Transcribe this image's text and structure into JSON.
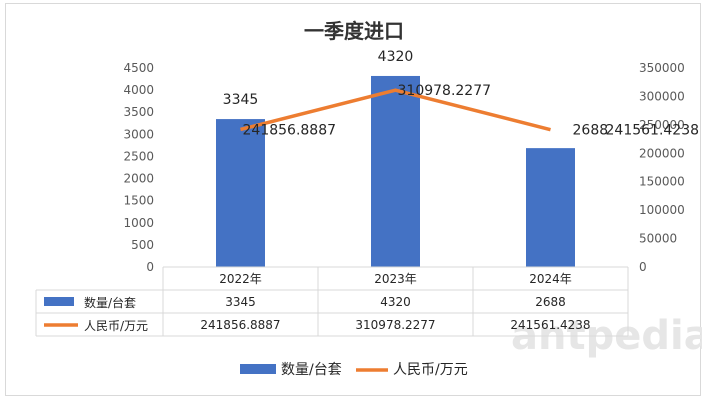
{
  "chart_data": {
    "type": "bar",
    "title": "一季度进口",
    "categories": [
      "2022年",
      "2023年",
      "2024年"
    ],
    "series": [
      {
        "name": "数量/台套",
        "type": "bar",
        "axis": "left",
        "color": "#4472c4",
        "values": [
          3345,
          4320,
          2688
        ],
        "labels": [
          "3345",
          "4320",
          "2688"
        ]
      },
      {
        "name": "人民币/万元",
        "type": "line",
        "axis": "right",
        "color": "#ed7d31",
        "values": [
          241856.8887,
          310978.2277,
          241561.4238
        ],
        "labels": [
          "241856.8887",
          "310978.2277",
          "241561.4238"
        ]
      }
    ],
    "ylim_left": [
      0,
      4500
    ],
    "yticks_left": [
      "0",
      "500",
      "1000",
      "1500",
      "2000",
      "2500",
      "3000",
      "3500",
      "4000",
      "4500"
    ],
    "ylim_right": [
      0,
      350000
    ],
    "yticks_right": [
      "0",
      "50000",
      "100000",
      "150000",
      "200000",
      "250000",
      "300000",
      "350000"
    ],
    "data_table": true,
    "legend_position": "bottom",
    "grid": false
  },
  "watermark": "antpedia"
}
